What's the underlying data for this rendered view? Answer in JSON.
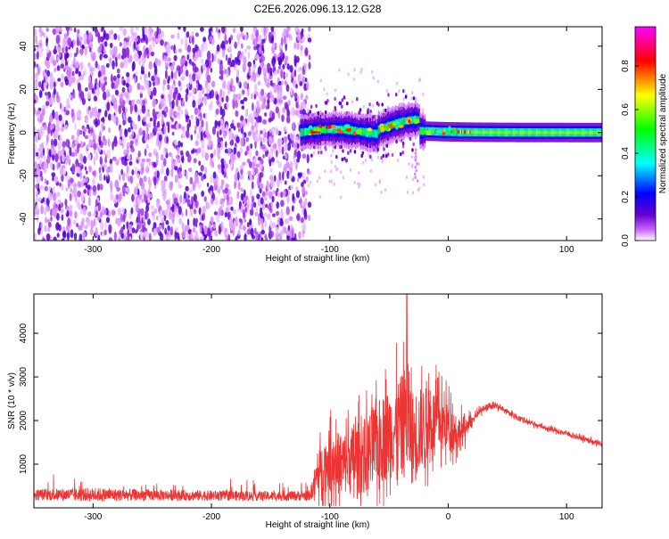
{
  "chart_data": [
    {
      "type": "heatmap",
      "title": "C2E6.2026.096.13.12.G28",
      "xlabel": "Height of straight line (km)",
      "ylabel": "Frequency (Hz)",
      "xlim": [
        -350,
        130
      ],
      "ylim": [
        -50,
        49
      ],
      "xticks": [
        -300,
        -200,
        -100,
        0,
        100
      ],
      "yticks": [
        -40,
        -20,
        0,
        20,
        40
      ],
      "colorbar": {
        "label": "Normalized spectral amplitude",
        "range": [
          0,
          0.98
        ],
        "ticks": [
          0.0,
          0.2,
          0.4,
          0.6,
          0.8
        ],
        "colormap": [
          "#ffffff",
          "#cc66ff",
          "#6600cc",
          "#0000ff",
          "#00ffff",
          "#00ff00",
          "#ffff00",
          "#ff0000",
          "#ff00ff"
        ]
      },
      "regions": [
        {
          "name": "noise",
          "x_range": [
            -350,
            -117
          ],
          "freq_range": [
            -50,
            49
          ],
          "amplitude": "0.0-0.15 scattered"
        },
        {
          "name": "signal_band_early",
          "x_range": [
            -125,
            -20
          ],
          "freq_center": [
            -2,
            6
          ],
          "amplitude": "0.2-0.6"
        },
        {
          "name": "signal_band_late",
          "x_range": [
            -20,
            130
          ],
          "freq_center": [
            0,
            0
          ],
          "amplitude": "0.4-0.9"
        }
      ]
    },
    {
      "type": "line",
      "xlabel": "Height of straight line (km)",
      "ylabel": "SNR (10 * v/v)",
      "xlim": [
        -350,
        130
      ],
      "ylim": [
        0,
        4900
      ],
      "xticks": [
        -300,
        -200,
        -100,
        0,
        100
      ],
      "yticks": [
        1000,
        2000,
        3000,
        4000
      ],
      "series": [
        {
          "name": "SNR",
          "color": "#ee3333",
          "envelope_x": [
            -350,
            -300,
            -250,
            -200,
            -150,
            -117,
            -110,
            -100,
            -90,
            -80,
            -70,
            -60,
            -50,
            -40,
            -35,
            -30,
            -20,
            -10,
            0,
            10,
            20,
            30,
            40,
            50,
            60,
            80,
            100,
            130
          ],
          "envelope_base": [
            300,
            300,
            290,
            280,
            270,
            280,
            800,
            1100,
            1000,
            1100,
            1200,
            1500,
            1700,
            1900,
            2100,
            1600,
            1900,
            2000,
            1900,
            1700,
            2000,
            2300,
            2350,
            2200,
            2050,
            1850,
            1700,
            1450
          ],
          "envelope_noise": [
            130,
            160,
            130,
            120,
            110,
            120,
            600,
            900,
            900,
            1000,
            1100,
            1200,
            1300,
            1400,
            1600,
            1400,
            1100,
            900,
            700,
            500,
            180,
            110,
            110,
            100,
            100,
            90,
            90,
            90
          ],
          "peak": {
            "x": -35,
            "y": 4900
          }
        }
      ]
    }
  ]
}
